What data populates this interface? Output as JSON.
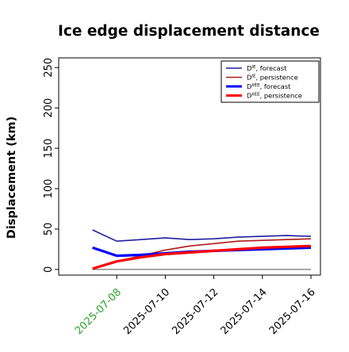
{
  "chart_data": {
    "type": "line",
    "title": "Ice edge displacement distance",
    "xlabel": "",
    "ylabel": "Displacement (km)",
    "x": [
      "2025-07-07",
      "2025-07-08",
      "2025-07-09",
      "2025-07-10",
      "2025-07-11",
      "2025-07-12",
      "2025-07-13",
      "2025-07-14",
      "2025-07-15",
      "2025-07-16"
    ],
    "xticks": [
      "2025-07-08",
      "2025-07-10",
      "2025-07-12",
      "2025-07-14",
      "2025-07-16"
    ],
    "highlighted_xtick": "2025-07-08",
    "xlim": [
      "2025-07-06",
      "2025-07-16"
    ],
    "ylim": [
      -7,
      262
    ],
    "yticks": [
      0,
      50,
      100,
      150,
      200,
      250
    ],
    "grid": false,
    "legend_position": "top-right",
    "series": [
      {
        "name": "D^IE, forecast",
        "name_base": "D",
        "name_sup": "IE",
        "name_tail": ", forecast",
        "color": "#1f1fa0",
        "width": "thin",
        "values": [
          49,
          35,
          37,
          39,
          37,
          38,
          40,
          41,
          42,
          41
        ]
      },
      {
        "name": "D^IE, persistence",
        "name_base": "D",
        "name_sup": "IE",
        "name_tail": ", persistence",
        "color": "#b01b1b",
        "width": "thin",
        "values": [
          1,
          10,
          17,
          24,
          29,
          32,
          35,
          36,
          37,
          38
        ]
      },
      {
        "name": "D^IIEE, forecast",
        "name_base": "D",
        "name_sup": "IIEE",
        "name_tail": ", forecast",
        "color": "#0000ff",
        "width": "thick",
        "values": [
          27,
          17,
          18,
          20,
          22,
          23,
          24,
          25,
          26,
          27
        ]
      },
      {
        "name": "D^IIEE, persistence",
        "name_base": "D",
        "name_sup": "IIEE",
        "name_tail": ", persistence",
        "color": "#ff0000",
        "width": "thick",
        "values": [
          1,
          10,
          15,
          19,
          21,
          23,
          25,
          27,
          28,
          29
        ]
      }
    ],
    "reference_line": {
      "y": 0,
      "color": "#555555"
    },
    "tick_label_color": "#000000",
    "highlight_color": "#2ca02c"
  }
}
